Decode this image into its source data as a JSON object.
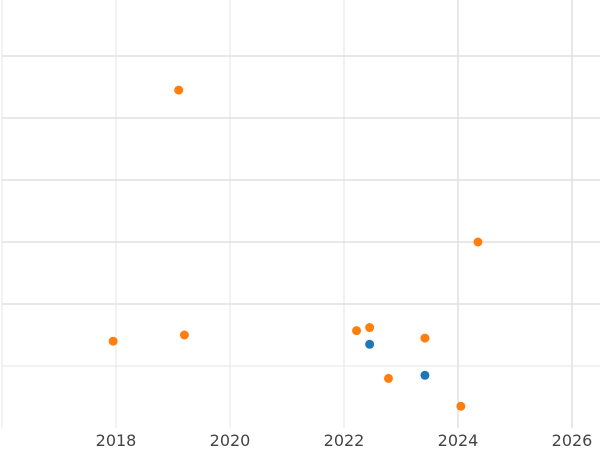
{
  "chart_data": {
    "type": "scatter",
    "title": "",
    "xlabel": "",
    "ylabel": "",
    "xlim": [
      2016.0,
      2026.5
    ],
    "ylim": [
      0,
      7
    ],
    "grid": true,
    "legend": "none",
    "x_ticks": [
      2018,
      2020,
      2022,
      2024,
      2026
    ],
    "x_tick_labels": [
      "2018",
      "2020",
      "2022",
      "2024",
      "2026"
    ],
    "y_ticks": [
      1,
      2,
      3,
      4,
      5,
      6
    ],
    "series": [
      {
        "color": "#1f77b4",
        "points": [
          {
            "x": 2022.45,
            "y": 1.35
          },
          {
            "x": 2023.42,
            "y": 0.85
          }
        ]
      },
      {
        "color": "#ff7f0e",
        "points": [
          {
            "x": 2017.95,
            "y": 1.4
          },
          {
            "x": 2019.1,
            "y": 5.45
          },
          {
            "x": 2019.2,
            "y": 1.5
          },
          {
            "x": 2022.22,
            "y": 1.57
          },
          {
            "x": 2022.45,
            "y": 1.62
          },
          {
            "x": 2022.78,
            "y": 0.8
          },
          {
            "x": 2023.42,
            "y": 1.45
          },
          {
            "x": 2024.05,
            "y": 0.35
          },
          {
            "x": 2024.35,
            "y": 3.0
          }
        ]
      }
    ]
  }
}
